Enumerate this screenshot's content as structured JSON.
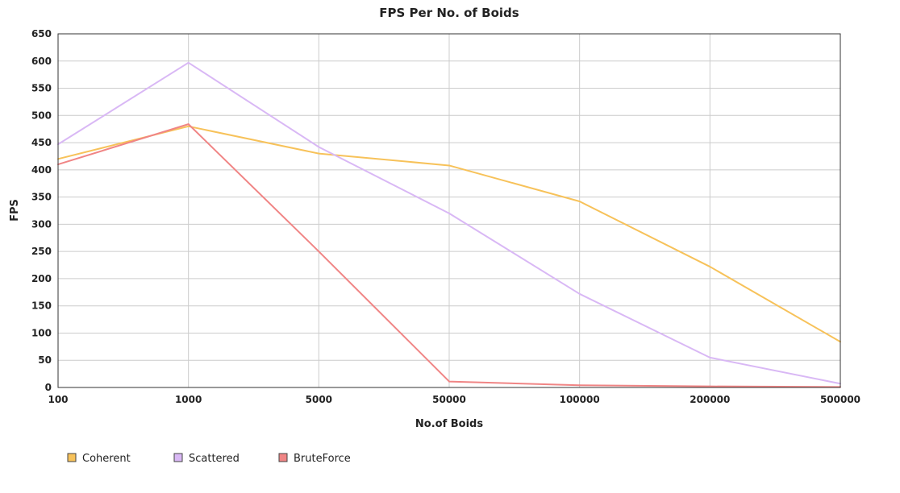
{
  "chart_data": {
    "type": "line",
    "title": "FPS Per No. of Boids",
    "xlabel": "No.of Boids",
    "ylabel": "FPS",
    "categories": [
      "100",
      "1000",
      "5000",
      "50000",
      "100000",
      "200000",
      "500000"
    ],
    "ylim": [
      0,
      650
    ],
    "yticks": [
      "0",
      "50",
      "100",
      "150",
      "200",
      "250",
      "300",
      "350",
      "400",
      "450",
      "500",
      "550",
      "600",
      "650"
    ],
    "grid": true,
    "legend_position": "bottom-left",
    "series": [
      {
        "name": "Coherent",
        "color": "#f7c25a",
        "values": [
          420,
          480,
          430,
          408,
          342,
          222,
          84
        ]
      },
      {
        "name": "Scattered",
        "color": "#d9b8f5",
        "values": [
          447,
          597,
          442,
          320,
          172,
          55,
          7
        ]
      },
      {
        "name": "BruteForce",
        "color": "#f08585",
        "values": [
          410,
          484,
          250,
          11,
          4,
          2,
          1
        ]
      }
    ]
  }
}
